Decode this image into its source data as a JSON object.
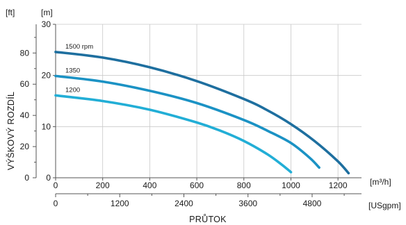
{
  "chart_data": {
    "type": "line",
    "ylabel": "VÝŠKOVÝ ROZDÍL",
    "xlabel": "PRŮTOK",
    "units": {
      "ft": "[ft]",
      "m": "[m]",
      "m3h": "[m³/h]",
      "usgpm": "[USgpm]"
    },
    "x_m3h": {
      "range": [
        0,
        1300
      ],
      "ticks": [
        0,
        200,
        400,
        600,
        800,
        1000,
        1200
      ]
    },
    "x_usgpm": {
      "range": [
        0,
        5724
      ],
      "ticks": [
        0,
        1200,
        2400,
        3600,
        4800
      ]
    },
    "y_m": {
      "range": [
        0,
        30
      ],
      "ticks": [
        0,
        10,
        20,
        30
      ]
    },
    "y_ft": {
      "range": [
        0,
        98.4
      ],
      "ticks": [
        0,
        20,
        40,
        60,
        80
      ]
    },
    "grid": true,
    "colors": {
      "1500 rpm": "#1e6f9f",
      "1350": "#1b92c4",
      "1200": "#22aed6"
    },
    "series": [
      {
        "name": "1500 rpm",
        "x": [
          0,
          200,
          400,
          600,
          800,
          900,
          1000,
          1100,
          1200,
          1245
        ],
        "y": [
          24.6,
          23.5,
          21.6,
          18.9,
          15.4,
          13.2,
          10.5,
          7.2,
          3.2,
          0.9
        ]
      },
      {
        "name": "1350",
        "x": [
          0,
          200,
          400,
          600,
          800,
          900,
          1000,
          1080,
          1120
        ],
        "y": [
          19.9,
          18.8,
          17.0,
          14.6,
          11.3,
          9.2,
          6.8,
          3.9,
          2.0
        ]
      },
      {
        "name": "1200",
        "x": [
          0,
          200,
          400,
          600,
          700,
          800,
          900,
          960,
          1000
        ],
        "y": [
          16.1,
          15.0,
          13.3,
          10.8,
          9.2,
          7.2,
          4.6,
          2.6,
          1.1
        ]
      }
    ]
  }
}
